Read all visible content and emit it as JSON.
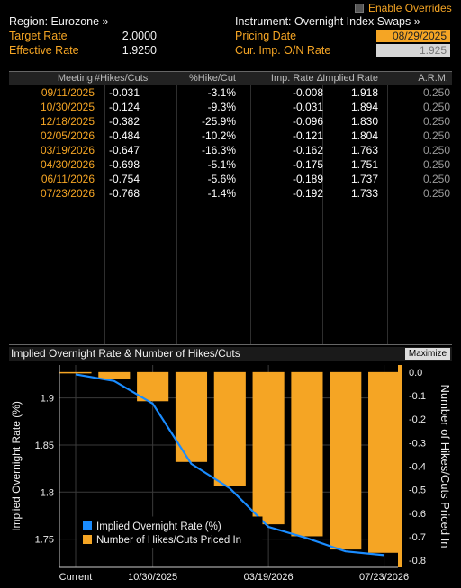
{
  "toolbar": {
    "enable_overrides": "Enable Overrides"
  },
  "header": {
    "region": "Region: Eurozone »",
    "instrument": "Instrument: Overnight Index Swaps »",
    "target_rate_label": "Target Rate",
    "target_rate_value": "2.0000",
    "effective_rate_label": "Effective Rate",
    "effective_rate_value": "1.9250",
    "pricing_date_label": "Pricing Date",
    "pricing_date_value": "08/29/2025",
    "cur_imp_label": "Cur. Imp. O/N Rate",
    "cur_imp_value": "1.925"
  },
  "table": {
    "columns": [
      "Meeting",
      "#Hikes/Cuts",
      "%Hike/Cut",
      "Imp. Rate Δ",
      "Implied Rate",
      "A.R.M."
    ],
    "rows": [
      {
        "meeting": "09/11/2025",
        "hikes": "-0.031",
        "pct": "-3.1%",
        "imp": "-0.008",
        "rate": "1.918",
        "arm": "0.250"
      },
      {
        "meeting": "10/30/2025",
        "hikes": "-0.124",
        "pct": "-9.3%",
        "imp": "-0.031",
        "rate": "1.894",
        "arm": "0.250"
      },
      {
        "meeting": "12/18/2025",
        "hikes": "-0.382",
        "pct": "-25.9%",
        "imp": "-0.096",
        "rate": "1.830",
        "arm": "0.250"
      },
      {
        "meeting": "02/05/2026",
        "hikes": "-0.484",
        "pct": "-10.2%",
        "imp": "-0.121",
        "rate": "1.804",
        "arm": "0.250"
      },
      {
        "meeting": "03/19/2026",
        "hikes": "-0.647",
        "pct": "-16.3%",
        "imp": "-0.162",
        "rate": "1.763",
        "arm": "0.250"
      },
      {
        "meeting": "04/30/2026",
        "hikes": "-0.698",
        "pct": "-5.1%",
        "imp": "-0.175",
        "rate": "1.751",
        "arm": "0.250"
      },
      {
        "meeting": "06/11/2026",
        "hikes": "-0.754",
        "pct": "-5.6%",
        "imp": "-0.189",
        "rate": "1.737",
        "arm": "0.250"
      },
      {
        "meeting": "07/23/2026",
        "hikes": "-0.768",
        "pct": "-1.4%",
        "imp": "-0.192",
        "rate": "1.733",
        "arm": "0.250"
      }
    ]
  },
  "chart": {
    "title": "Implied Overnight Rate & Number of Hikes/Cuts",
    "maximize_label": "Maximize"
  },
  "chart_data": {
    "type": "bar",
    "title": "Implied Overnight Rate & Number of Hikes/Cuts",
    "categories": [
      "Current",
      "09/11/2025",
      "10/30/2025",
      "12/18/2025",
      "02/05/2026",
      "03/19/2026",
      "04/30/2026",
      "06/11/2026",
      "07/23/2026"
    ],
    "x_tick_labels": [
      "Current",
      "10/30/2025",
      "03/19/2026",
      "07/23/2026"
    ],
    "left_axis": {
      "label": "Implied Overnight Rate (%)",
      "ylim": [
        1.72,
        1.935
      ],
      "ticks": [
        "1.9",
        "1.85",
        "1.8",
        "1.75"
      ]
    },
    "right_axis": {
      "label": "Number of Hikes/Cuts Priced In",
      "ylim": [
        -0.83,
        0.03
      ],
      "ticks": [
        "0.0",
        "-0.1",
        "-0.2",
        "-0.3",
        "-0.4",
        "-0.5",
        "-0.6",
        "-0.7",
        "-0.8"
      ]
    },
    "series": [
      {
        "name": "Implied Overnight Rate (%)",
        "type": "line",
        "axis": "left",
        "color": "#1a8cff",
        "values": [
          1.925,
          1.918,
          1.894,
          1.83,
          1.804,
          1.763,
          1.751,
          1.737,
          1.733
        ]
      },
      {
        "name": "Number of Hikes/Cuts Priced In",
        "type": "bar",
        "axis": "right",
        "color": "#f5a524",
        "values": [
          0,
          -0.031,
          -0.124,
          -0.382,
          -0.484,
          -0.647,
          -0.698,
          -0.754,
          -0.768
        ]
      }
    ],
    "legend": "bottom-left",
    "grid": true
  }
}
